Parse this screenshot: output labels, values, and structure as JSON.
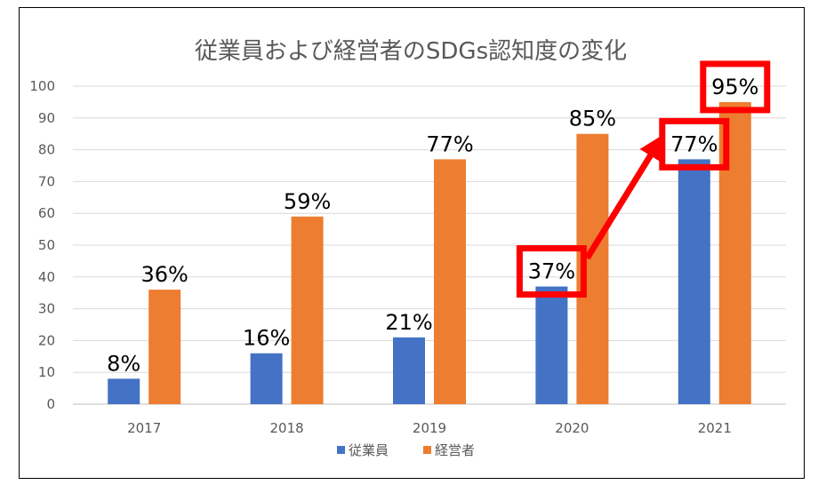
{
  "chart_data": {
    "type": "bar",
    "title": "従業員および経営者のSDGs認知度の変化",
    "categories": [
      "2017",
      "2018",
      "2019",
      "2020",
      "2021"
    ],
    "series": [
      {
        "name": "従業員",
        "color": "#4472C4",
        "values": [
          8,
          16,
          21,
          37,
          77
        ],
        "labels": [
          "8%",
          "16%",
          "21%",
          "37%",
          "77%"
        ]
      },
      {
        "name": "経営者",
        "color": "#ED7D31",
        "values": [
          36,
          59,
          77,
          85,
          95
        ],
        "labels": [
          "36%",
          "59%",
          "77%",
          "85%",
          "95%"
        ]
      }
    ],
    "ylim": [
      0,
      100
    ],
    "yticks": [
      "0",
      "10",
      "20",
      "30",
      "40",
      "50",
      "60",
      "70",
      "80",
      "90",
      "100"
    ],
    "grid": true,
    "legend": "bottom",
    "annotations": {
      "highlight_color": "#FF0000",
      "highlighted_labels": [
        "従業員 2020: 37%",
        "従業員 2021: 77%",
        "経営者 2021: 95%"
      ],
      "arrow": "from 2020 従業員 label to 2021 従業員 label"
    }
  }
}
